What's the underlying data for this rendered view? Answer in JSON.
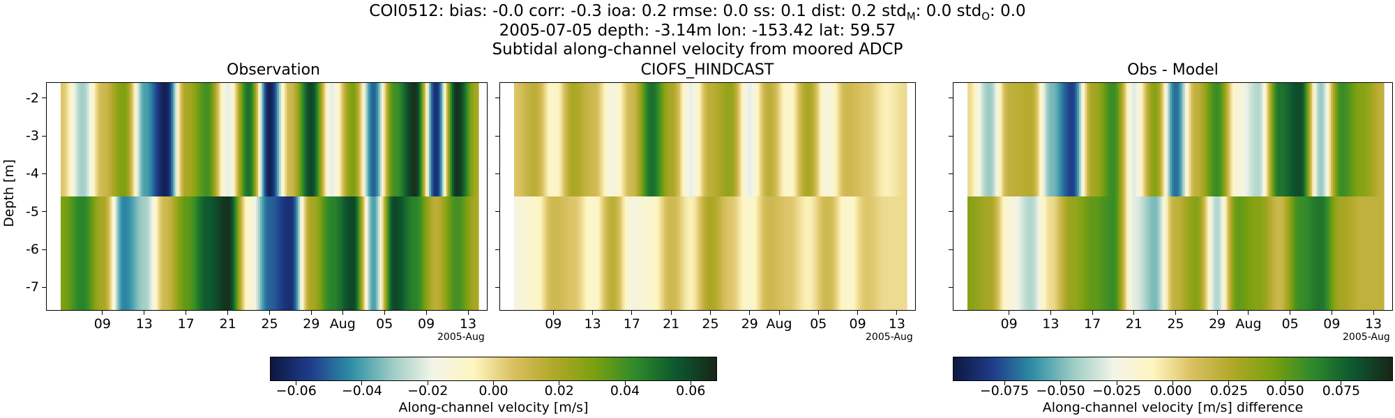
{
  "header": {
    "line1": "COI0512: bias: -0.0  corr: -0.3  ioa: 0.2  rmse: 0.0  ss: 0.1  dist: 0.2  std",
    "sub_m": "M",
    "sub_o": "O",
    "line1_mid": ": 0.0  std",
    "line1_end": ": 0.0",
    "line2": "2005-07-05 depth: -3.14m lon: -153.42 lat: 59.57",
    "line3": "Subtidal along-channel velocity from moored ADCP"
  },
  "chart_data": [
    {
      "type": "heatmap",
      "title": "Observation",
      "ylabel": "Depth [m]",
      "ylim": [
        -7.6,
        -1.6
      ],
      "y_ticks": [
        "-2",
        "-3",
        "-4",
        "-5",
        "-6",
        "-7"
      ],
      "y_tick_values": [
        -2,
        -3,
        -4,
        -5,
        -6,
        -7
      ],
      "x_range": [
        "2005-07-05",
        "2005-08-14"
      ],
      "x_ticks": [
        "09",
        "13",
        "17",
        "21",
        "25",
        "29",
        "Aug",
        "05",
        "09",
        "13"
      ],
      "x_tick_days": [
        4,
        8,
        12,
        16,
        20,
        24,
        27,
        31,
        35,
        39
      ],
      "x_offset_label": "2005-Aug",
      "bin_boundary_depth": -4.6,
      "upper_bin": [
        0.005,
        -0.03,
        0.01,
        0.03,
        -0.04,
        -0.065,
        0.02,
        0.04,
        -0.02,
        0.05,
        -0.065,
        0.01,
        0.06,
        -0.02,
        0.03,
        -0.05,
        0.04,
        0.065,
        -0.06,
        0.065,
        0.02
      ],
      "lower_bin": [
        0.03,
        0.045,
        0.02,
        -0.045,
        -0.03,
        0.01,
        0.035,
        0.055,
        0.065,
        -0.01,
        -0.05,
        -0.06,
        0.02,
        0.045,
        0.06,
        -0.04,
        0.06,
        0.045,
        0.015,
        0.04,
        0.02
      ]
    },
    {
      "type": "heatmap",
      "title": "CIOFS_HINDCAST",
      "ylim": [
        -7.6,
        -1.6
      ],
      "x_ticks": [
        "09",
        "13",
        "17",
        "21",
        "25",
        "29",
        "Aug",
        "05",
        "09",
        "13"
      ],
      "x_offset_label": "2005-Aug",
      "upper_bin": [
        0.005,
        0.015,
        -0.01,
        0.02,
        0.01,
        -0.015,
        0.01,
        0.05,
        0.02,
        -0.02,
        0.015,
        0.025,
        -0.02,
        0.015,
        -0.01,
        0.02,
        -0.015,
        0.01,
        0.005,
        -0.005,
        0.0
      ],
      "lower_bin": [
        -0.015,
        -0.01,
        0.01,
        0.005,
        -0.01,
        0.015,
        -0.015,
        -0.01,
        0.01,
        -0.005,
        0.02,
        0.005,
        -0.01,
        0.01,
        0.005,
        -0.005,
        0.01,
        -0.01,
        0.005,
        0.0,
        0.0
      ]
    },
    {
      "type": "heatmap",
      "title": "Obs - Model",
      "ylim": [
        -7.6,
        -1.6
      ],
      "x_ticks": [
        "09",
        "13",
        "17",
        "21",
        "25",
        "29",
        "Aug",
        "05",
        "09",
        "13"
      ],
      "x_offset_label": "2005-Aug",
      "upper_bin": [
        0.0,
        -0.045,
        0.02,
        0.025,
        -0.05,
        -0.08,
        0.03,
        0.06,
        -0.03,
        0.04,
        -0.07,
        0.02,
        0.06,
        -0.02,
        -0.04,
        0.07,
        0.085,
        -0.045,
        0.06,
        0.04,
        0.02
      ],
      "lower_bin": [
        0.04,
        0.03,
        -0.02,
        -0.04,
        0.0,
        0.035,
        0.05,
        0.06,
        -0.03,
        -0.05,
        0.02,
        0.04,
        -0.04,
        0.05,
        0.04,
        0.015,
        0.06,
        0.07,
        0.03,
        0.02,
        0.02
      ]
    }
  ],
  "colorbars": [
    {
      "label": "Along-channel velocity [m/s]",
      "range": [
        -0.068,
        0.068
      ],
      "ticks": [
        "−0.06",
        "−0.04",
        "−0.02",
        "0.00",
        "0.02",
        "0.04",
        "0.06"
      ],
      "tick_values": [
        -0.06,
        -0.04,
        -0.02,
        0.0,
        0.02,
        0.04,
        0.06
      ]
    },
    {
      "label": "Along-channel velocity [m/s] difference",
      "range": [
        -0.098,
        0.098
      ],
      "ticks": [
        "−0.075",
        "−0.050",
        "−0.025",
        "0.000",
        "0.025",
        "0.050",
        "0.075"
      ],
      "tick_values": [
        -0.075,
        -0.05,
        -0.025,
        0.0,
        0.025,
        0.05,
        0.075
      ]
    }
  ],
  "colormap": [
    "#0d1740",
    "#1f3d8c",
    "#2f8fa6",
    "#9cccc4",
    "#f2f4e8",
    "#fff5c0",
    "#d9c060",
    "#b0a828",
    "#7aa010",
    "#2e8a2a",
    "#0d5830",
    "#172618"
  ]
}
